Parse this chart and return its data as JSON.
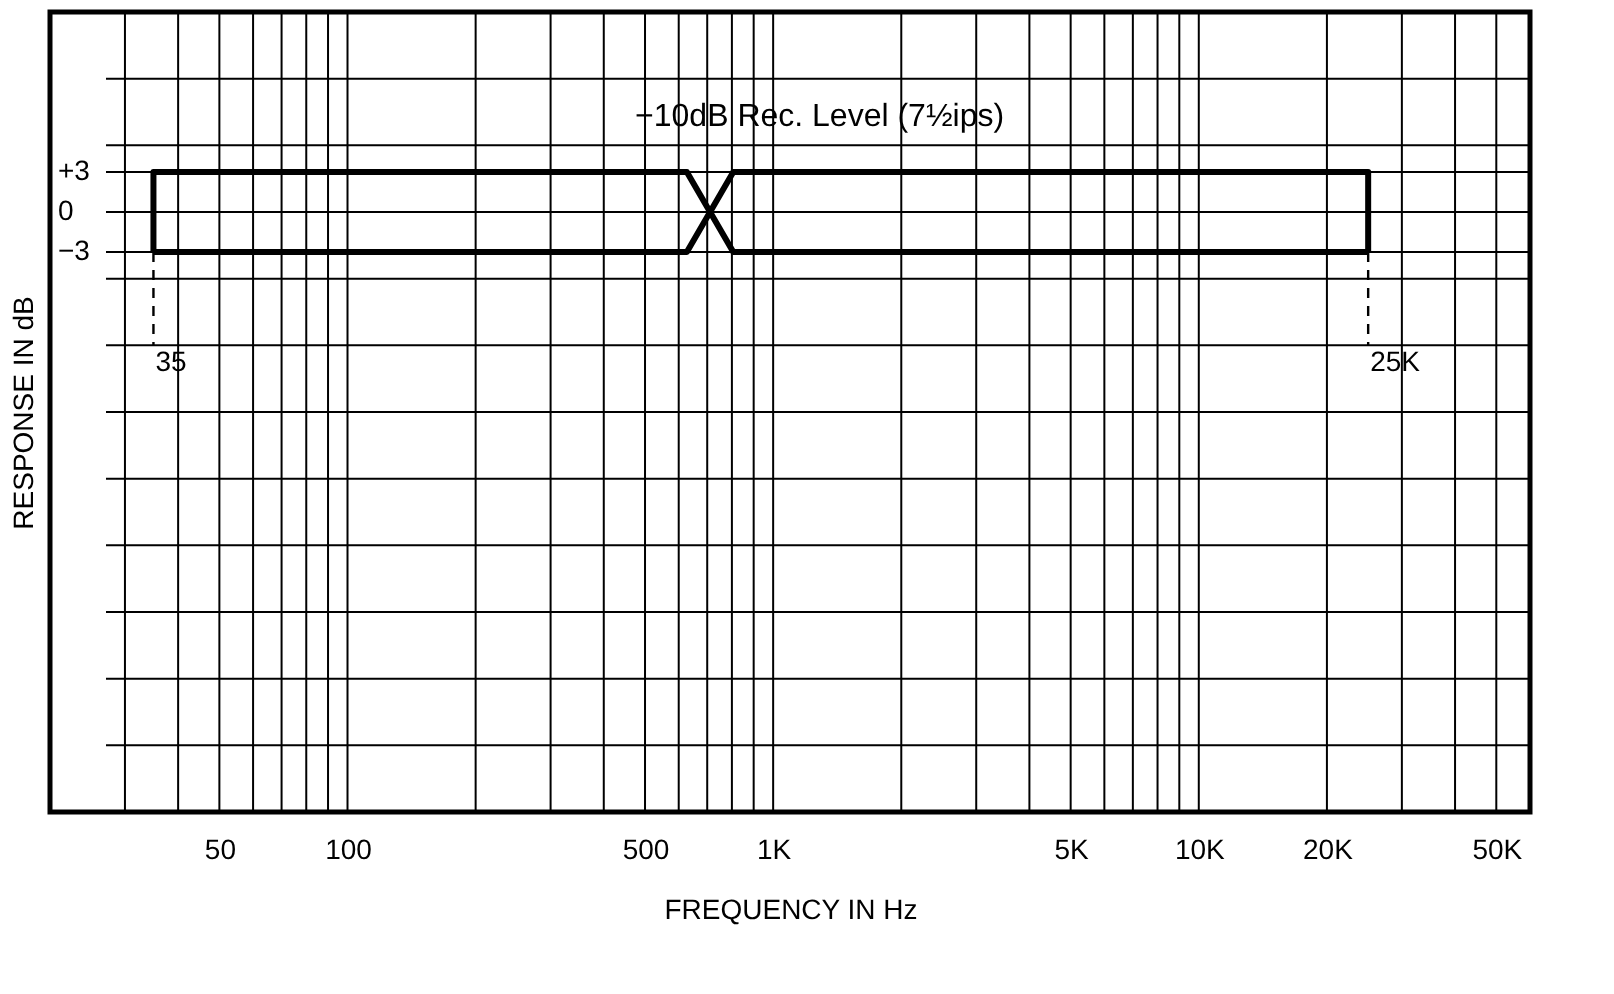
{
  "chart_data": {
    "type": "line",
    "xlabel": "FREQUENCY IN Hz",
    "ylabel": "RESPONSE IN dB",
    "annotations": [
      "−10dB Rec. Level (7½ips)",
      {
        "text": "35",
        "x": 35,
        "y": -10
      },
      {
        "text": "25K",
        "x": 25000,
        "y": -10
      }
    ],
    "series": [
      {
        "color": "#000000",
        "x": [
          35,
          35,
          627,
          806,
          25000
        ],
        "values": [
          -3,
          3,
          3,
          -3,
          -3
        ]
      },
      {
        "color": "#000000",
        "x": [
          35,
          627,
          806,
          25000,
          25000
        ],
        "values": [
          -3,
          -3,
          3,
          3,
          -3
        ]
      },
      {
        "color": "#000000",
        "line_style": "dashed",
        "x": [
          35,
          35
        ],
        "values": [
          -3,
          -10
        ]
      },
      {
        "color": "#000000",
        "line_style": "dashed",
        "x": [
          25000,
          25000
        ],
        "values": [
          -3,
          -10
        ]
      }
    ],
    "log": "x",
    "xlim": [
      20,
      60000
    ],
    "ylim": [
      -45,
      15
    ],
    "xticks": [
      {
        "value": 20,
        "label": null
      },
      {
        "value": 30,
        "label": null
      },
      {
        "value": 40,
        "label": null
      },
      50,
      {
        "value": 60,
        "label": null
      },
      {
        "value": 70,
        "label": null
      },
      {
        "value": 80,
        "label": null
      },
      {
        "value": 90,
        "label": null
      },
      100,
      {
        "value": 200,
        "label": null
      },
      {
        "value": 300,
        "label": null
      },
      {
        "value": 400,
        "label": null
      },
      500,
      {
        "value": 600,
        "label": null
      },
      {
        "value": 700,
        "label": null
      },
      {
        "value": 800,
        "label": null
      },
      {
        "value": 900,
        "label": null
      },
      {
        "value": 1000,
        "label": "1K"
      },
      {
        "value": 2000,
        "label": null
      },
      {
        "value": 3000,
        "label": null
      },
      {
        "value": 4000,
        "label": null
      },
      {
        "value": 5000,
        "label": "5K"
      },
      {
        "value": 6000,
        "label": null
      },
      {
        "value": 7000,
        "label": null
      },
      {
        "value": 8000,
        "label": null
      },
      {
        "value": 9000,
        "label": null
      },
      {
        "value": 10000,
        "label": "10K"
      },
      {
        "value": 20000,
        "label": "20K"
      },
      {
        "value": 30000,
        "label": null
      },
      {
        "value": 40000,
        "label": null
      },
      {
        "value": 50000,
        "label": "50K"
      }
    ],
    "yticks": [
      {
        "value": -45,
        "label": null
      },
      {
        "value": -40,
        "label": null
      },
      {
        "value": -35,
        "label": null
      },
      {
        "value": -30,
        "label": null
      },
      {
        "value": -25,
        "label": null
      },
      {
        "value": -20,
        "label": null
      },
      {
        "value": -15,
        "label": null
      },
      {
        "value": -10,
        "label": null
      },
      {
        "value": -5,
        "label": null
      },
      {
        "value": -3,
        "label": "−3"
      },
      0,
      {
        "value": 3,
        "label": "+3"
      },
      {
        "value": 5,
        "label": null
      },
      {
        "value": 10,
        "label": null
      },
      {
        "value": 15,
        "label": null
      }
    ],
    "grid": true,
    "marker": "none",
    "line_style": "solid"
  }
}
